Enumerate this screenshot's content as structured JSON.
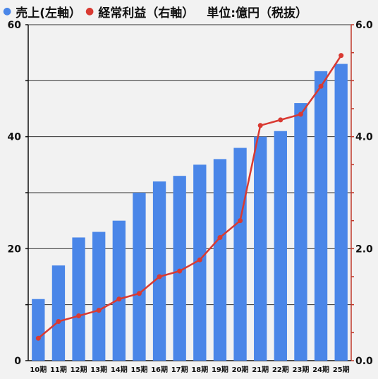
{
  "legend": {
    "sales": "売上(左軸）",
    "profit": "経常利益（右軸）",
    "unit": "単位:億円（税抜）"
  },
  "colors": {
    "bar": "#4a86e8",
    "line": "#d93a32",
    "grid": "#333333",
    "axis_right": "#c0392b"
  },
  "chart_data": {
    "type": "bar",
    "categories": [
      "10期",
      "11期",
      "12期",
      "13期",
      "14期",
      "15期",
      "16期",
      "17期",
      "18期",
      "19期",
      "20期",
      "21期",
      "22期",
      "23期",
      "24期",
      "25期"
    ],
    "series": [
      {
        "name": "売上",
        "type": "bar",
        "axis": "left",
        "values": [
          11,
          17,
          22,
          23,
          25,
          30,
          32,
          33,
          35,
          36,
          38,
          40,
          41,
          46,
          51.7,
          53
        ]
      },
      {
        "name": "経常利益",
        "type": "line",
        "axis": "right",
        "values": [
          0.4,
          0.7,
          0.8,
          0.9,
          1.1,
          1.2,
          1.5,
          1.6,
          1.8,
          2.2,
          2.5,
          4.2,
          4.3,
          4.4,
          4.9,
          5.45
        ]
      }
    ],
    "y_left": {
      "range": [
        0,
        60
      ],
      "ticks": [
        "0",
        "20",
        "40",
        "60"
      ]
    },
    "y_right": {
      "range": [
        0,
        6
      ],
      "ticks": [
        "0.0",
        "2.0",
        "4.0",
        "6.0"
      ]
    },
    "grid": true
  }
}
